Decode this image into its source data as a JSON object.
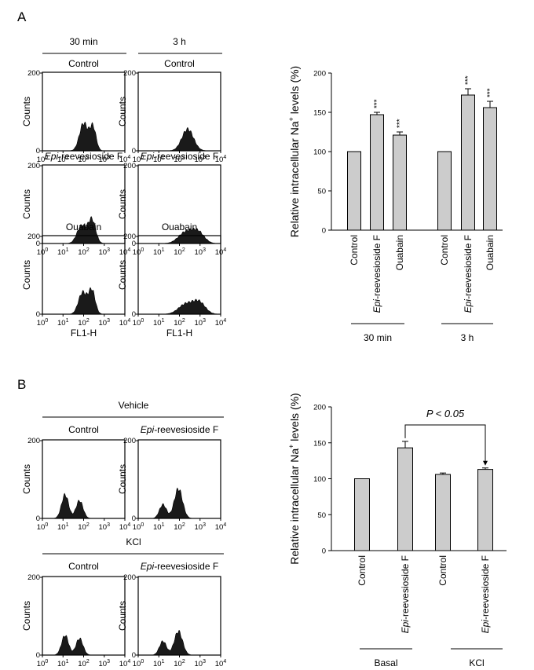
{
  "figure": {
    "panel_a": "A",
    "panel_b": "B"
  },
  "chart_data": [
    {
      "panel": "A",
      "type": "histogram",
      "time_headers": [
        "30 min",
        "3 h"
      ],
      "row_titles": [
        "Control",
        "Control",
        "Epi-reevesioside F",
        "Epi-reevesioside F",
        "Ouabain",
        "Ouabain"
      ],
      "ylabel": "Counts",
      "ytick_top": "200",
      "ytick_zero": "0",
      "xlabel": "FL1-H",
      "xticks": [
        "10",
        "10",
        "10",
        "10",
        "10"
      ],
      "xtick_exps": [
        "0",
        "1",
        "2",
        "3",
        "4"
      ],
      "ylim": [
        0,
        200
      ],
      "xlim_log10": [
        0,
        4
      ],
      "histograms": [
        {
          "peaks": [
            [
              2.0,
              0.2,
              70
            ],
            [
              2.45,
              0.15,
              60
            ]
          ]
        },
        {
          "peaks": [
            [
              2.4,
              0.28,
              55
            ]
          ]
        },
        {
          "peaks": [
            [
              1.9,
              0.22,
              45
            ],
            [
              2.4,
              0.18,
              60
            ]
          ]
        },
        {
          "peaks": [
            [
              2.3,
              0.35,
              28
            ],
            [
              2.9,
              0.3,
              28
            ]
          ]
        },
        {
          "peaks": [
            [
              1.95,
              0.2,
              55
            ],
            [
              2.4,
              0.16,
              60
            ]
          ]
        },
        {
          "peaks": [
            [
              2.3,
              0.35,
              25
            ],
            [
              2.95,
              0.3,
              30
            ]
          ]
        }
      ]
    },
    {
      "panel": "A",
      "type": "bar",
      "ylabel_main": "Relative intracellular Na",
      "ylabel_sup": "+",
      "ylabel_tail": " levels (%)",
      "ylim": [
        0,
        200
      ],
      "yticks": [
        "0",
        "50",
        "100",
        "150",
        "200"
      ],
      "categories": [
        "Control",
        "reevesioside F",
        "Ouabain",
        "Control",
        "reevesioside F",
        "Ouabain"
      ],
      "category_prefix_italic": [
        "",
        "Epi-",
        "",
        "",
        "Epi-",
        ""
      ],
      "values": [
        100,
        147,
        121,
        100,
        172,
        156
      ],
      "errors": [
        0,
        3,
        4,
        0,
        8,
        8
      ],
      "annotations": [
        "",
        "***",
        "***",
        "",
        "***",
        "***"
      ],
      "groups": [
        "30 min",
        "3 h"
      ]
    },
    {
      "panel": "B",
      "type": "histogram",
      "group_headers": [
        "Vehicle",
        "KCl"
      ],
      "col_titles": [
        "Control",
        "Epi-reevesioside F",
        "Control",
        "Epi-reevesioside F"
      ],
      "ylabel": "Counts",
      "ytick_top": "200",
      "ytick_zero": "0",
      "xlabel": "FL1-H",
      "xticks": [
        "10",
        "10",
        "10",
        "10",
        "10"
      ],
      "xtick_exps": [
        "0",
        "1",
        "2",
        "3",
        "4"
      ],
      "ylim": [
        0,
        200
      ],
      "histograms": [
        {
          "peaks": [
            [
              1.1,
              0.17,
              60
            ],
            [
              1.8,
              0.17,
              45
            ]
          ]
        },
        {
          "peaks": [
            [
              1.2,
              0.17,
              35
            ],
            [
              1.95,
              0.2,
              75
            ]
          ]
        },
        {
          "peaks": [
            [
              1.1,
              0.17,
              50
            ],
            [
              1.8,
              0.17,
              42
            ]
          ]
        },
        {
          "peaks": [
            [
              1.2,
              0.17,
              35
            ],
            [
              1.95,
              0.2,
              60
            ]
          ]
        }
      ]
    },
    {
      "panel": "B",
      "type": "bar",
      "ylabel_main": "Relative intracellular Na",
      "ylabel_sup": "+",
      "ylabel_tail": " levels (%)",
      "ylim": [
        0,
        200
      ],
      "yticks": [
        "0",
        "50",
        "100",
        "150",
        "200"
      ],
      "categories": [
        "Control",
        "reevesioside F",
        "Control",
        "reevesioside F"
      ],
      "category_prefix_italic": [
        "",
        "Epi-",
        "",
        "Epi-"
      ],
      "values": [
        100,
        143,
        106,
        113
      ],
      "errors": [
        0,
        9,
        2,
        2
      ],
      "groups": [
        "Basal",
        "KCl"
      ],
      "significance": "P < 0.05"
    }
  ]
}
